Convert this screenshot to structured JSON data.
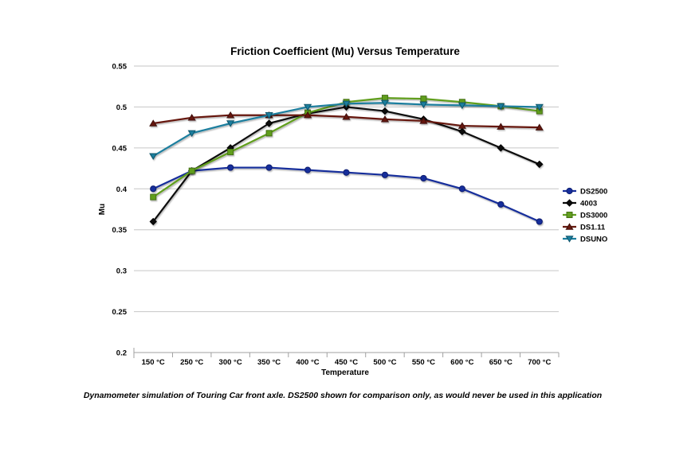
{
  "chart_data": {
    "type": "line",
    "title": "Friction Coefficient (Mu) Versus Temperature",
    "xlabel": "Temperature",
    "ylabel": "Mu",
    "caption": "Dynamometer simulation of Touring Car front axle. DS2500 shown for comparison only, as would never be used in this application",
    "categories": [
      "150 °C",
      "250 °C",
      "300 °C",
      "350 °C",
      "400 °C",
      "450 °C",
      "500 °C",
      "550 °C",
      "600 °C",
      "650 °C",
      "700 °C"
    ],
    "ylim": [
      0.2,
      0.55
    ],
    "y_ticks": [
      "0.55",
      "0.5",
      "0.45",
      "0.4",
      "0.35",
      "0.3",
      "0.25",
      "0.2"
    ],
    "grid": true,
    "legend_position": "right",
    "series": [
      {
        "name": "DS2500",
        "marker": "circle",
        "color": "#162D9B",
        "marker_stroke": "#0D1E70",
        "values": [
          0.4,
          0.422,
          0.426,
          0.426,
          0.423,
          0.42,
          0.417,
          0.413,
          0.4,
          0.381,
          0.36
        ]
      },
      {
        "name": "4003",
        "marker": "diamond",
        "color": "#0B0B0B",
        "marker_stroke": "#000000",
        "values": [
          0.36,
          0.422,
          0.45,
          0.48,
          0.492,
          0.5,
          0.495,
          0.485,
          0.47,
          0.45,
          0.43
        ]
      },
      {
        "name": "DS3000",
        "marker": "square",
        "color": "#619E1E",
        "marker_stroke": "#446F15",
        "values": [
          0.39,
          0.422,
          0.445,
          0.468,
          0.493,
          0.506,
          0.511,
          0.51,
          0.506,
          0.501,
          0.495
        ]
      },
      {
        "name": "DS1.11",
        "marker": "triangle-up",
        "color": "#66190F",
        "marker_stroke": "#3F0F09",
        "values": [
          0.48,
          0.487,
          0.49,
          0.49,
          0.49,
          0.488,
          0.485,
          0.483,
          0.477,
          0.476,
          0.475
        ]
      },
      {
        "name": "DSUNO",
        "marker": "triangle-down",
        "color": "#1A7E9E",
        "marker_stroke": "#11556B",
        "values": [
          0.44,
          0.468,
          0.48,
          0.49,
          0.5,
          0.504,
          0.505,
          0.503,
          0.502,
          0.501,
          0.5
        ]
      }
    ],
    "colors": {
      "gridline": "#C6C6C6",
      "axis": "#A0A0A0",
      "background": "#FFFFFF",
      "text": "#000000"
    }
  }
}
